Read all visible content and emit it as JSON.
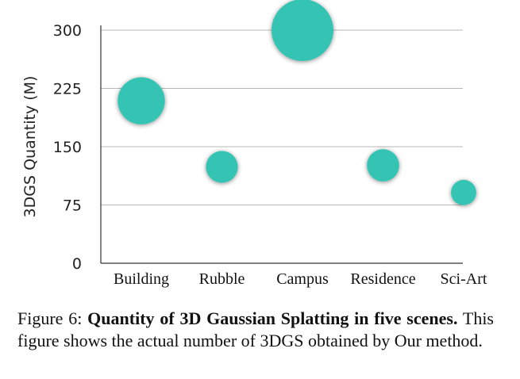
{
  "chart_data": {
    "type": "bubble",
    "categories": [
      "Building",
      "Rubble",
      "Campus",
      "Residence",
      "Sci-Art"
    ],
    "values": [
      209,
      124,
      300,
      126,
      91
    ],
    "title": "",
    "xlabel": "",
    "ylabel": "3DGS Quantity (M)",
    "ylim": [
      0,
      300
    ],
    "yticks": [
      0,
      75,
      150,
      225,
      300
    ],
    "grid": true,
    "color": "#35c4b4"
  },
  "caption": {
    "label": "Figure 6:",
    "bold": "Quantity of 3D Gaussian Splatting in five scenes.",
    "rest": "This figure shows the actual number of 3DGS obtained by Our method."
  }
}
